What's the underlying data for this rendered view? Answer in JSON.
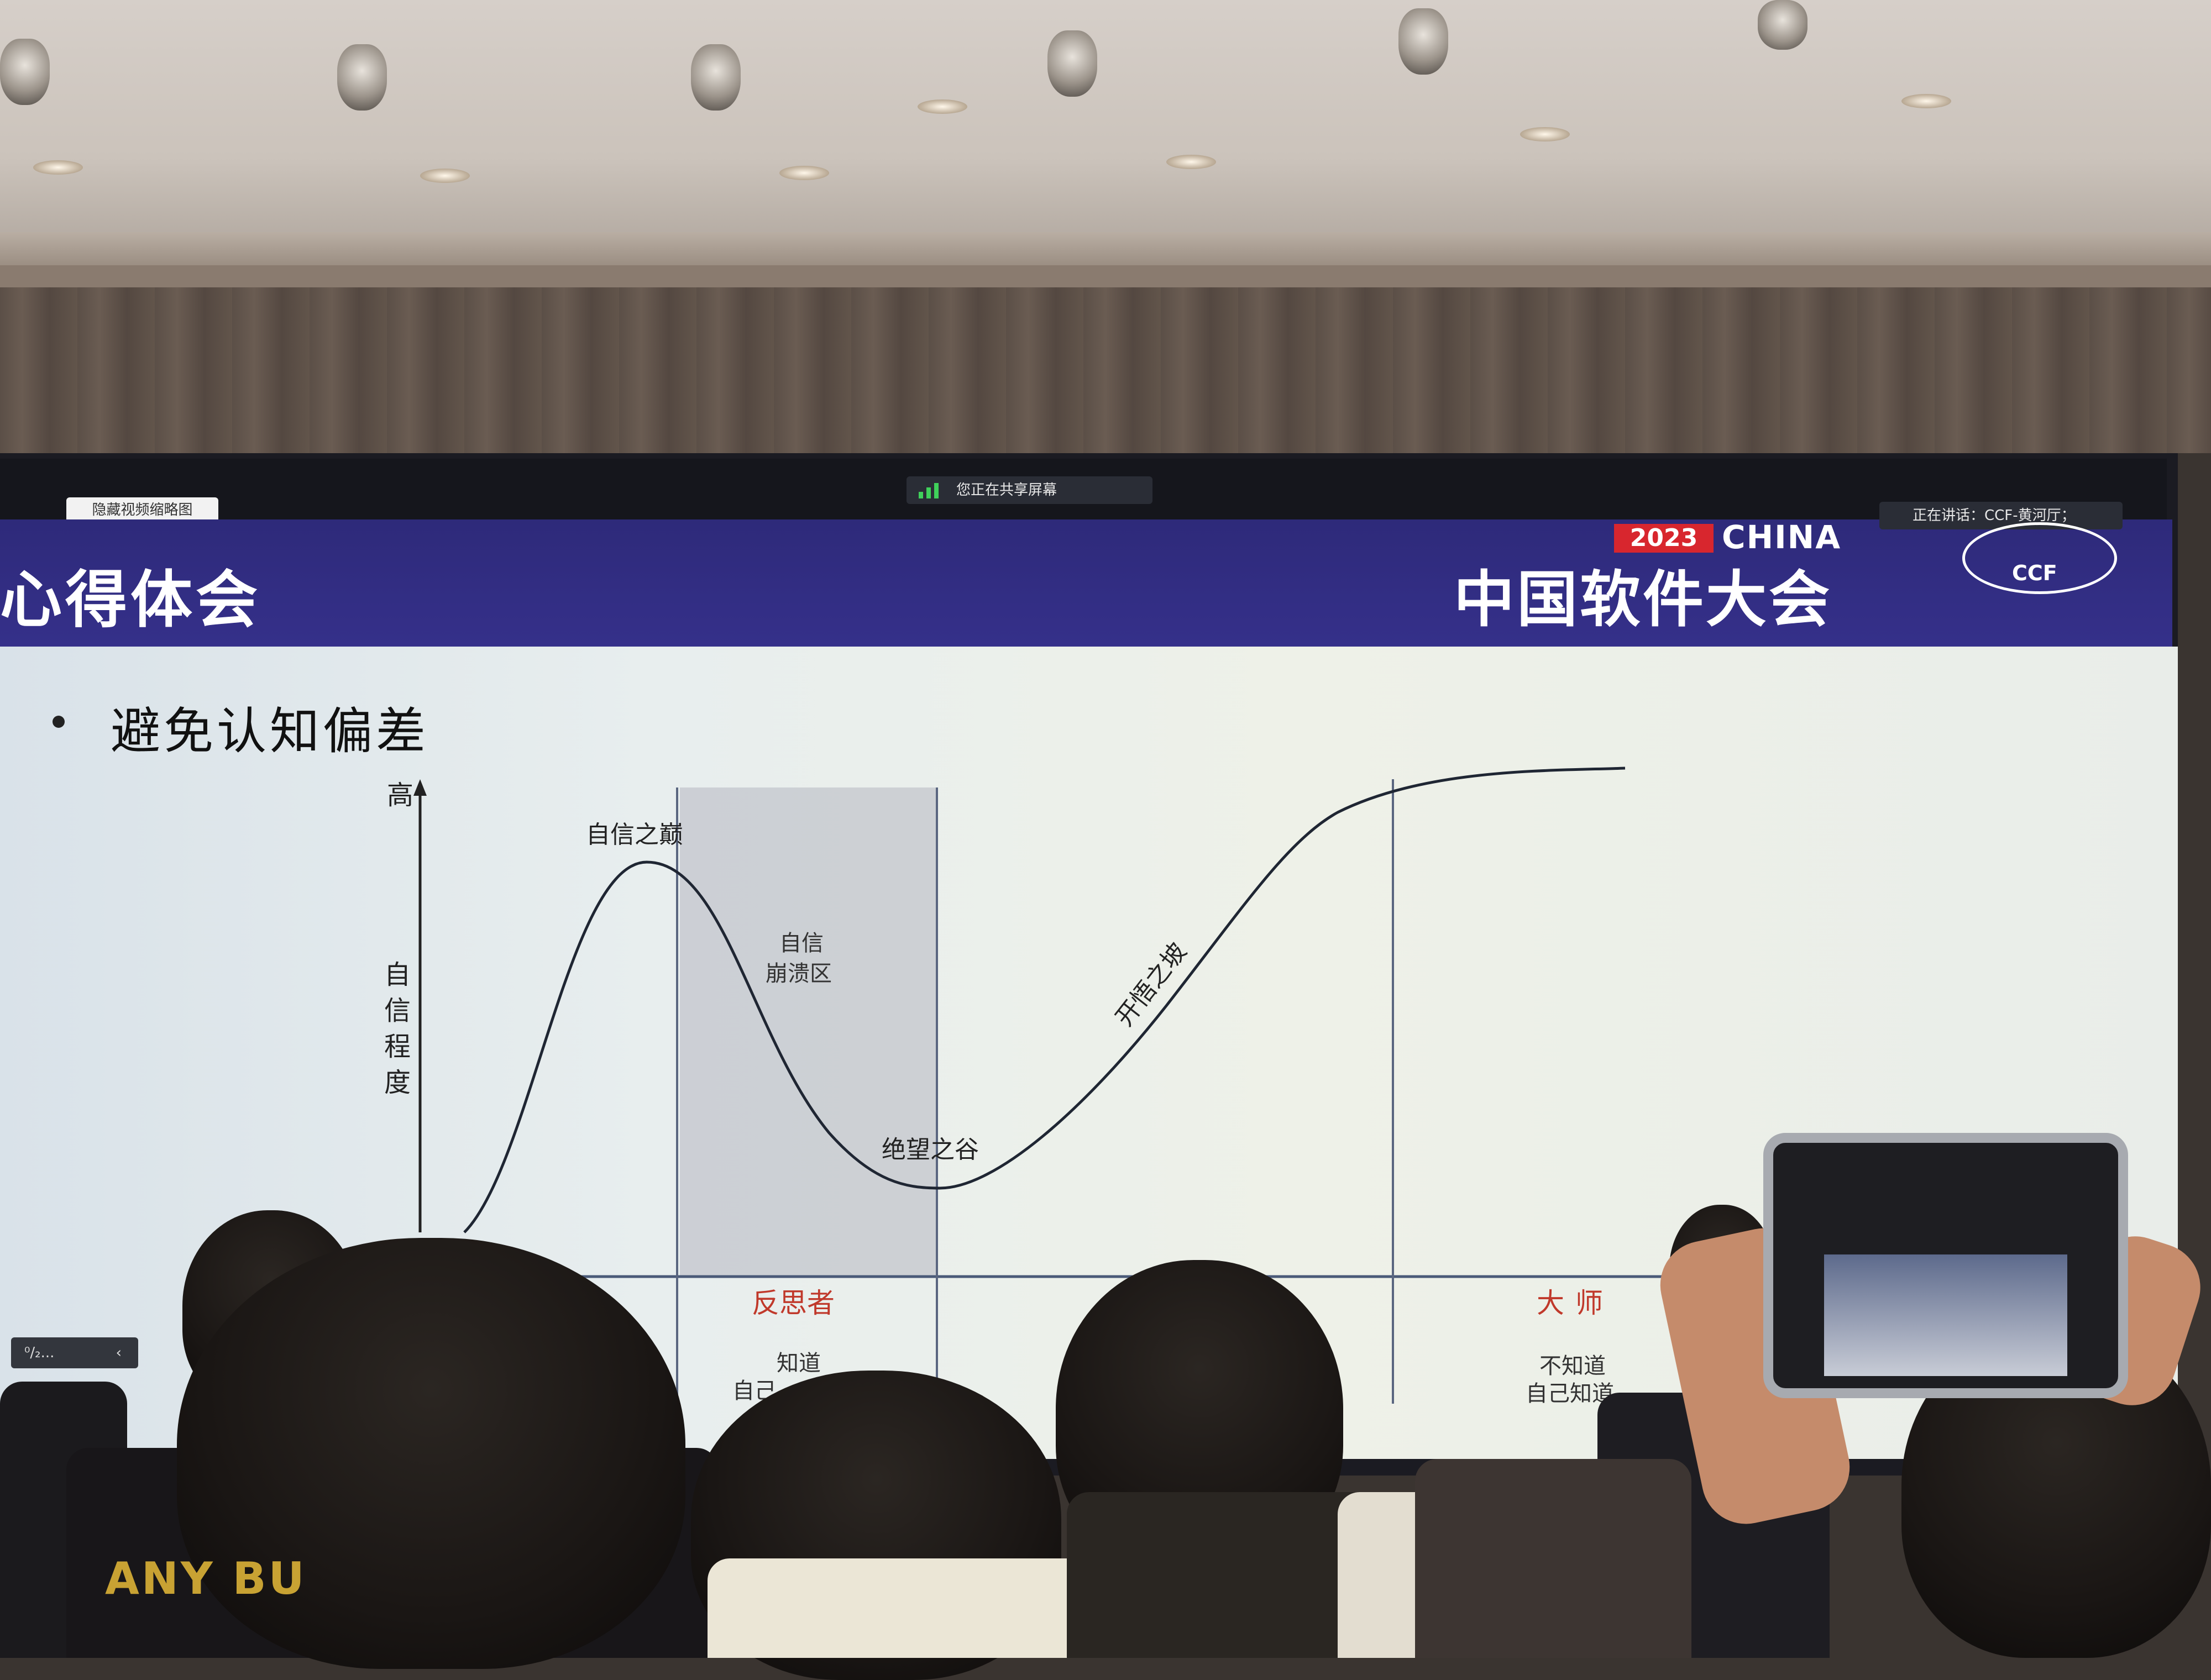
{
  "zoom_ui": {
    "hide_video_button": "隐藏视频缩略图",
    "sharing_status": "您正在共享屏幕",
    "speaking_label": "正在讲话：CCF-黄河厅；",
    "slide_control": "⁰/₂..."
  },
  "header": {
    "year": "2023",
    "brand": "CHINA",
    "conference": "中国软件大会",
    "logo_text": "CCF",
    "slide_title": "心得体会"
  },
  "bullet": "避免认知偏差",
  "chart_data": {
    "type": "line",
    "title": "",
    "ylabel": "自信程度",
    "y_top_label": "高",
    "annotations": {
      "peak": "自信之巅",
      "collapse_zone": "自信崩溃区",
      "valley": "绝望之谷",
      "slope": "开悟之坡"
    },
    "stages": [
      {
        "name": "反思者",
        "desc": "知道自己不知道",
        "visible_desc": "知道\n自己"
      },
      {
        "name": "大师",
        "desc": "不知道自己知道",
        "visible_desc": "不知道\n自己知道"
      }
    ],
    "stage_names": [
      "反思者",
      "大师"
    ],
    "stage_desc_lines": [
      [
        "知道",
        "自己"
      ],
      [
        "不知道",
        "自己知道"
      ]
    ],
    "series": [
      {
        "values_desc": "confidence curve: rises to peak, falls to valley, rises and plateaus"
      }
    ]
  },
  "audience": {
    "tshirt_text": "ANY BU"
  },
  "colors": {
    "header_bg": "#2e2a7a",
    "stage_label": "#c0392b",
    "year_badge": "#d8262e"
  }
}
